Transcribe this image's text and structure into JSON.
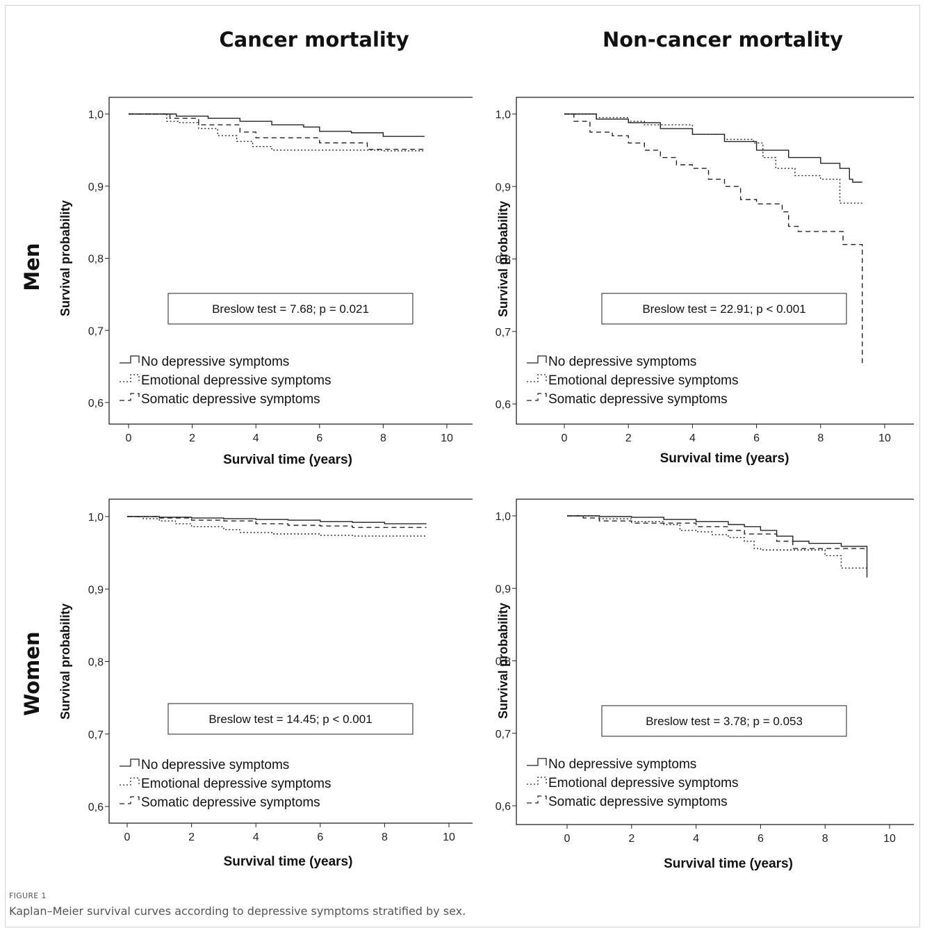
{
  "titles": {
    "col1": "Cancer mortality",
    "col2": "Non-cancer mortality",
    "row1": "Men",
    "row2": "Women"
  },
  "caption": {
    "label": "FIGURE 1",
    "text": "Kaplan–Meier survival curves according to depressive symptoms stratified by sex."
  },
  "chart_data": [
    {
      "type": "line",
      "panel": "men-cancer",
      "xlabel": "Survival time (years)",
      "ylabel": "Survival probability",
      "xlim": [
        0,
        10
      ],
      "ylim": [
        0.6,
        1.0
      ],
      "xticks": [
        "0",
        "2",
        "4",
        "6",
        "8",
        "10"
      ],
      "yticks": [
        "1,0",
        "0,9",
        "0,8",
        "0,7",
        "0,6"
      ],
      "annotation": "Breslow test = 7.68; p = 0.021",
      "series": [
        {
          "name": "No depressive symptoms",
          "dash": "solid",
          "points": [
            [
              0,
              1.0
            ],
            [
              0.9,
              1.0
            ],
            [
              1.5,
              0.997
            ],
            [
              2.5,
              0.994
            ],
            [
              3.5,
              0.99
            ],
            [
              4.5,
              0.985
            ],
            [
              5.5,
              0.982
            ],
            [
              6,
              0.976
            ],
            [
              7,
              0.974
            ],
            [
              8,
              0.969
            ],
            [
              9.3,
              0.969
            ]
          ]
        },
        {
          "name": "Emotional depressive symptoms",
          "dash": "dotted",
          "points": [
            [
              0,
              1.0
            ],
            [
              0.8,
              1.0
            ],
            [
              1.2,
              0.99
            ],
            [
              1.6,
              0.988
            ],
            [
              2.2,
              0.98
            ],
            [
              2.8,
              0.97
            ],
            [
              3.4,
              0.962
            ],
            [
              3.9,
              0.955
            ],
            [
              4.5,
              0.95
            ],
            [
              5.5,
              0.95
            ],
            [
              7.2,
              0.95
            ],
            [
              8,
              0.949
            ],
            [
              9.3,
              0.949
            ]
          ]
        },
        {
          "name": "Somatic depressive symptoms",
          "dash": "dashed",
          "points": [
            [
              0,
              1.0
            ],
            [
              0.9,
              1.0
            ],
            [
              1.3,
              0.994
            ],
            [
              2.2,
              0.985
            ],
            [
              3.5,
              0.975
            ],
            [
              4,
              0.967
            ],
            [
              5,
              0.967
            ],
            [
              6,
              0.96
            ],
            [
              7,
              0.96
            ],
            [
              7.5,
              0.951
            ],
            [
              9.3,
              0.951
            ]
          ]
        }
      ]
    },
    {
      "type": "line",
      "panel": "men-noncancer",
      "xlabel": "Survival time (years)",
      "ylabel": "Survival probability",
      "xlim": [
        0,
        10
      ],
      "ylim": [
        0.6,
        1.0
      ],
      "xticks": [
        "0",
        "2",
        "4",
        "6",
        "8",
        "10"
      ],
      "yticks": [
        "1,0",
        "0,9",
        "0,8",
        "0,7",
        "0,6"
      ],
      "annotation": "Breslow test = 22.91; p < 0.001",
      "series": [
        {
          "name": "No depressive symptoms",
          "dash": "solid",
          "points": [
            [
              0,
              1.0
            ],
            [
              1,
              0.993
            ],
            [
              2,
              0.988
            ],
            [
              3,
              0.98
            ],
            [
              4,
              0.972
            ],
            [
              5,
              0.962
            ],
            [
              6,
              0.95
            ],
            [
              7,
              0.94
            ],
            [
              8,
              0.932
            ],
            [
              8.6,
              0.925
            ],
            [
              8.9,
              0.91
            ],
            [
              9,
              0.906
            ],
            [
              9.3,
              0.906
            ]
          ]
        },
        {
          "name": "Emotional depressive symptoms",
          "dash": "dotted",
          "points": [
            [
              0,
              1.0
            ],
            [
              1,
              0.995
            ],
            [
              2,
              0.99
            ],
            [
              2.5,
              0.985
            ],
            [
              4,
              0.972
            ],
            [
              5,
              0.965
            ],
            [
              5.9,
              0.96
            ],
            [
              6.2,
              0.94
            ],
            [
              6.6,
              0.925
            ],
            [
              7.2,
              0.915
            ],
            [
              7.8,
              0.915
            ],
            [
              8,
              0.91
            ],
            [
              8.6,
              0.877
            ],
            [
              9.3,
              0.877
            ]
          ]
        },
        {
          "name": "Somatic depressive symptoms",
          "dash": "dashed",
          "points": [
            [
              0,
              1.0
            ],
            [
              0.3,
              0.99
            ],
            [
              0.8,
              0.975
            ],
            [
              1.5,
              0.97
            ],
            [
              2,
              0.96
            ],
            [
              2.5,
              0.95
            ],
            [
              3,
              0.94
            ],
            [
              3.5,
              0.93
            ],
            [
              4,
              0.925
            ],
            [
              4.5,
              0.91
            ],
            [
              5,
              0.9
            ],
            [
              5.5,
              0.882
            ],
            [
              6,
              0.876
            ],
            [
              6.8,
              0.865
            ],
            [
              7,
              0.845
            ],
            [
              7.3,
              0.838
            ],
            [
              8,
              0.838
            ],
            [
              8.7,
              0.82
            ],
            [
              9.3,
              0.815
            ],
            [
              9.3,
              0.653
            ]
          ]
        }
      ]
    },
    {
      "type": "line",
      "panel": "women-cancer",
      "xlabel": "Survival time (years)",
      "ylabel": "Survival probability",
      "xlim": [
        0,
        10
      ],
      "ylim": [
        0.6,
        1.0
      ],
      "xticks": [
        "0",
        "2",
        "4",
        "6",
        "8",
        "10"
      ],
      "yticks": [
        "1,0",
        "0,9",
        "0,8",
        "0,7",
        "0,6"
      ],
      "annotation": "Breslow test = 14.45; p < 0.001",
      "series": [
        {
          "name": "No depressive symptoms",
          "dash": "solid",
          "points": [
            [
              0,
              1.0
            ],
            [
              1,
              0.999
            ],
            [
              2,
              0.998
            ],
            [
              3,
              0.997
            ],
            [
              4,
              0.996
            ],
            [
              5,
              0.995
            ],
            [
              6,
              0.993
            ],
            [
              7,
              0.992
            ],
            [
              8,
              0.99
            ],
            [
              9.3,
              0.99
            ]
          ]
        },
        {
          "name": "Emotional depressive symptoms",
          "dash": "dotted",
          "points": [
            [
              0,
              1.0
            ],
            [
              0.5,
              0.997
            ],
            [
              1,
              0.994
            ],
            [
              1.5,
              0.99
            ],
            [
              2,
              0.986
            ],
            [
              3,
              0.982
            ],
            [
              3.5,
              0.978
            ],
            [
              4,
              0.978
            ],
            [
              4.5,
              0.976
            ],
            [
              5.5,
              0.976
            ],
            [
              6,
              0.974
            ],
            [
              7,
              0.973
            ],
            [
              9.3,
              0.973
            ]
          ]
        },
        {
          "name": "Somatic depressive symptoms",
          "dash": "dashed",
          "points": [
            [
              0,
              1.0
            ],
            [
              1,
              0.998
            ],
            [
              2,
              0.995
            ],
            [
              3,
              0.994
            ],
            [
              4,
              0.99
            ],
            [
              5,
              0.988
            ],
            [
              6,
              0.987
            ],
            [
              7,
              0.985
            ],
            [
              9.3,
              0.985
            ]
          ]
        }
      ]
    },
    {
      "type": "line",
      "panel": "women-noncancer",
      "xlabel": "Survival time (years)",
      "ylabel": "Survival probability",
      "xlim": [
        0,
        10
      ],
      "ylim": [
        0.6,
        1.0
      ],
      "xticks": [
        "0",
        "2",
        "4",
        "6",
        "8",
        "10"
      ],
      "yticks": [
        "1,0",
        "0,9",
        "0,8",
        "0,7",
        "0,6"
      ],
      "annotation": "Breslow test = 3.78; p = 0.053",
      "series": [
        {
          "name": "No depressive symptoms",
          "dash": "solid",
          "points": [
            [
              0,
              1.0
            ],
            [
              1,
              0.999
            ],
            [
              2,
              0.998
            ],
            [
              3,
              0.995
            ],
            [
              4,
              0.992
            ],
            [
              5,
              0.988
            ],
            [
              5.5,
              0.985
            ],
            [
              6,
              0.98
            ],
            [
              6.5,
              0.972
            ],
            [
              7,
              0.965
            ],
            [
              7.5,
              0.962
            ],
            [
              8,
              0.962
            ],
            [
              8.5,
              0.958
            ],
            [
              9.3,
              0.955
            ],
            [
              9.3,
              0.915
            ]
          ]
        },
        {
          "name": "Emotional depressive symptoms",
          "dash": "dotted",
          "points": [
            [
              0,
              1.0
            ],
            [
              1,
              0.996
            ],
            [
              2,
              0.992
            ],
            [
              3,
              0.988
            ],
            [
              3.5,
              0.98
            ],
            [
              4,
              0.978
            ],
            [
              4.5,
              0.974
            ],
            [
              5,
              0.97
            ],
            [
              5.5,
              0.965
            ],
            [
              5.8,
              0.955
            ],
            [
              6,
              0.953
            ],
            [
              7,
              0.953
            ],
            [
              8,
              0.945
            ],
            [
              8.5,
              0.928
            ],
            [
              9.3,
              0.928
            ]
          ]
        },
        {
          "name": "Somatic depressive symptoms",
          "dash": "dashed",
          "points": [
            [
              0,
              1.0
            ],
            [
              0.5,
              0.997
            ],
            [
              1,
              0.993
            ],
            [
              2,
              0.99
            ],
            [
              3,
              0.99
            ],
            [
              4,
              0.985
            ],
            [
              5,
              0.98
            ],
            [
              5.5,
              0.975
            ],
            [
              6,
              0.975
            ],
            [
              6.5,
              0.965
            ],
            [
              7,
              0.955
            ],
            [
              8,
              0.955
            ],
            [
              9.3,
              0.955
            ]
          ]
        }
      ]
    }
  ]
}
